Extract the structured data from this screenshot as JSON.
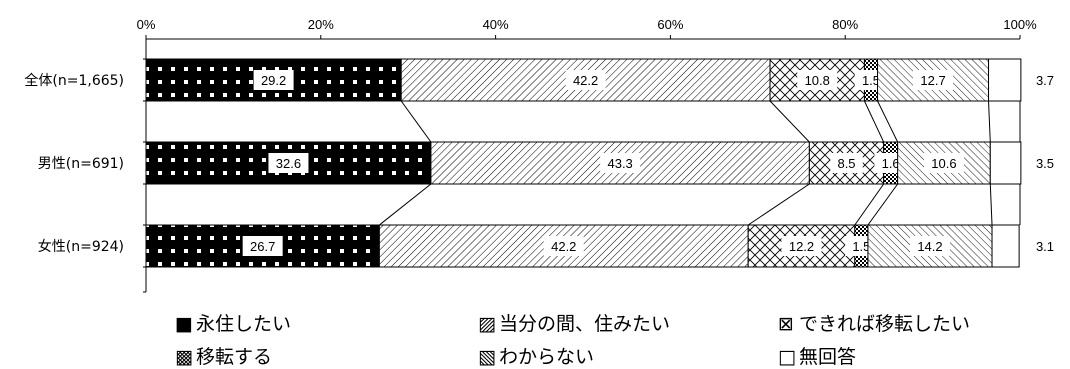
{
  "chart_data": {
    "type": "bar",
    "orientation": "horizontal",
    "stacked": true,
    "xlim": [
      0,
      100
    ],
    "xticks": [
      "0%",
      "20%",
      "40%",
      "60%",
      "80%",
      "100%"
    ],
    "categories": [
      "全体(n=1,665)",
      "男性(n=691)",
      "女性(n=924)"
    ],
    "series": [
      {
        "name": "永住したい",
        "values": [
          29.2,
          32.6,
          26.7
        ],
        "pattern": "dots-on-black"
      },
      {
        "name": "当分の間、住みたい",
        "values": [
          42.2,
          43.3,
          42.2
        ],
        "pattern": "diagonal-fine"
      },
      {
        "name": "できれば移転したい",
        "values": [
          10.8,
          8.5,
          12.2
        ],
        "pattern": "crosshatch"
      },
      {
        "name": "移転する",
        "values": [
          1.5,
          1.6,
          1.5
        ],
        "pattern": "checker"
      },
      {
        "name": "わからない",
        "values": [
          12.7,
          10.6,
          14.2
        ],
        "pattern": "diagonal-back"
      },
      {
        "name": "無回答",
        "values": [
          3.7,
          3.5,
          3.1
        ],
        "pattern": "white"
      }
    ],
    "legend": {
      "position": "bottom",
      "markers": [
        "■",
        "▨",
        "⊠",
        "▩",
        "▧",
        "□"
      ]
    },
    "grid": false
  }
}
